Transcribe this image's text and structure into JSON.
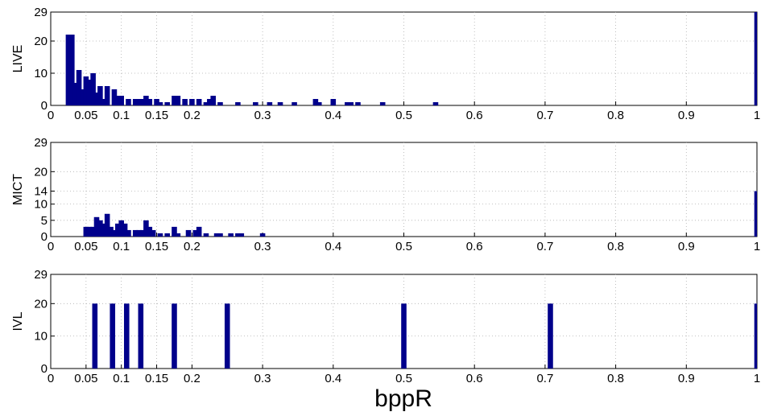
{
  "chart_data": [
    {
      "type": "bar",
      "ylabel": "LIVE",
      "xlabel": "",
      "xlim": [
        0,
        1
      ],
      "ylim": [
        0,
        29
      ],
      "grid": true,
      "xticks": [
        "0",
        "0.05",
        "0.1",
        "0.15",
        "0.2",
        "0.3",
        "0.4",
        "0.5",
        "0.6",
        "0.7",
        "0.8",
        "0.9",
        "1"
      ],
      "yticks": [
        "0",
        "10",
        "20",
        "29"
      ],
      "bar_color": "#00008b",
      "x": [
        0.025,
        0.03,
        0.035,
        0.04,
        0.045,
        0.05,
        0.055,
        0.06,
        0.065,
        0.07,
        0.075,
        0.08,
        0.09,
        0.095,
        0.1,
        0.11,
        0.12,
        0.125,
        0.13,
        0.135,
        0.14,
        0.15,
        0.155,
        0.165,
        0.175,
        0.18,
        0.19,
        0.2,
        0.21,
        0.22,
        0.225,
        0.23,
        0.24,
        0.265,
        0.29,
        0.31,
        0.325,
        0.345,
        0.375,
        0.38,
        0.4,
        0.42,
        0.425,
        0.435,
        0.47,
        0.545,
        1.0
      ],
      "values": [
        22,
        22,
        7,
        11,
        5,
        9,
        8,
        10,
        4,
        6,
        2,
        6,
        5,
        3,
        3,
        2,
        2,
        2,
        2,
        3,
        2,
        2,
        1,
        1,
        3,
        3,
        2,
        2,
        2,
        1,
        2,
        3,
        1,
        1,
        1,
        1,
        1,
        1,
        2,
        1,
        2,
        1,
        1,
        1,
        1,
        1,
        29
      ]
    },
    {
      "type": "bar",
      "ylabel": "MICT",
      "xlabel": "",
      "xlim": [
        0,
        1
      ],
      "ylim": [
        0,
        29
      ],
      "grid": true,
      "xticks": [
        "0",
        "0.05",
        "0.1",
        "0.15",
        "0.2",
        "0.3",
        "0.4",
        "0.5",
        "0.6",
        "0.7",
        "0.8",
        "0.9",
        "1"
      ],
      "yticks": [
        "0",
        "5",
        "10",
        "14",
        "20",
        "29"
      ],
      "bar_color": "#00008b",
      "x": [
        0.05,
        0.055,
        0.06,
        0.065,
        0.07,
        0.075,
        0.08,
        0.085,
        0.09,
        0.095,
        0.1,
        0.105,
        0.11,
        0.12,
        0.125,
        0.13,
        0.135,
        0.14,
        0.145,
        0.155,
        0.165,
        0.175,
        0.18,
        0.195,
        0.205,
        0.21,
        0.22,
        0.235,
        0.24,
        0.255,
        0.265,
        0.27,
        0.3,
        1.0
      ],
      "values": [
        3,
        3,
        3,
        6,
        5,
        4,
        7,
        3,
        2,
        4,
        5,
        4,
        2,
        2,
        2,
        2,
        5,
        3,
        2,
        1,
        1,
        3,
        1,
        2,
        2,
        3,
        1,
        1,
        1,
        1,
        1,
        1,
        1,
        14
      ]
    },
    {
      "type": "bar",
      "ylabel": "IVL",
      "xlabel": "bppR",
      "xlim": [
        0,
        1
      ],
      "ylim": [
        0,
        29
      ],
      "grid": true,
      "xticks": [
        "0",
        "0.05",
        "0.1",
        "0.15",
        "0.2",
        "0.3",
        "0.4",
        "0.5",
        "0.6",
        "0.7",
        "0.8",
        "0.9",
        "1"
      ],
      "yticks": [
        "0",
        "10",
        "20",
        "29"
      ],
      "bar_color": "#00008b",
      "x": [
        0.0625,
        0.0875,
        0.1075,
        0.1275,
        0.175,
        0.25,
        0.5,
        0.7075,
        1.0
      ],
      "values": [
        20,
        20,
        20,
        20,
        20,
        20,
        20,
        20,
        20
      ]
    }
  ]
}
